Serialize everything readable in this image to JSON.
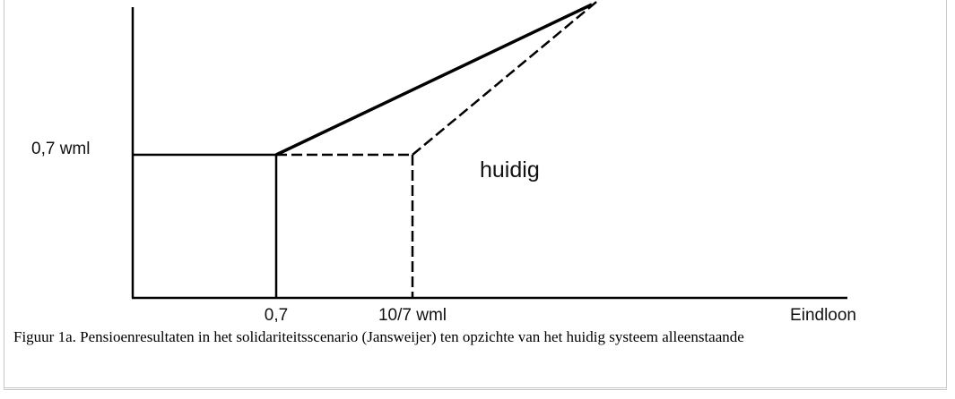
{
  "figure": {
    "labels": {
      "y_level": "0,7 wml",
      "curve": "huidig",
      "x_first": "0,7",
      "x_second": "10/7 wml",
      "x_axis": "Eindloon"
    },
    "caption": "Figuur 1a. Pensioenresultaten in het solidariteitsscenario (Jansweijer) ten opzichte van het huidig systeem alleenstaande"
  }
}
